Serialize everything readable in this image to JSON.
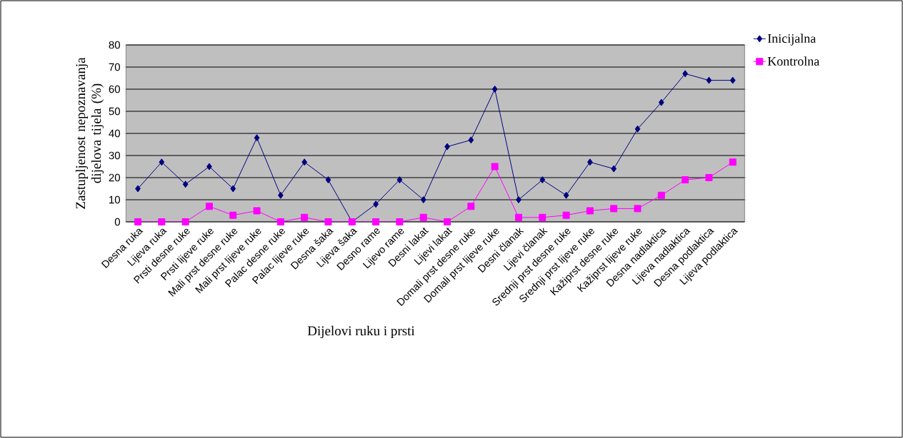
{
  "chart_data": {
    "type": "line",
    "xlabel": "Dijelovi ruku i prsti",
    "ylabel": "Zastupljenost nepoznavanja dijelova tijela (%)",
    "categories": [
      "Desna ruka",
      "Lijeva ruka",
      "Prsti desne ruke",
      "Prsti lijeve ruke",
      "Mali prst desne ruke",
      "Mali prst lijeve ruke",
      "Palac desne ruke",
      "Palac lijeve ruke",
      "Desna šaka",
      "Lijeva šaka",
      "Desno rame",
      "Lijevo rame",
      "Desni lakat",
      "Lijevi lakat",
      "Domali prst desne ruke",
      "Domali prst lijeve ruke",
      "Desni članak",
      "Lijevi članak",
      "Srednji prst desne ruke",
      "Srednji prst lijeve ruke",
      "Kažiprst desne ruke",
      "Kažiprst lijeve ruke",
      "Desna nadlaktica",
      "Lijeva nadlaktica",
      "Desna podlaktica",
      "Lijeva podlaktica"
    ],
    "series": [
      {
        "name": "Inicijalna",
        "color": "#000080",
        "marker": "diamond",
        "values": [
          15,
          27,
          17,
          25,
          15,
          38,
          12,
          27,
          19,
          0,
          8,
          19,
          10,
          34,
          37,
          60,
          10,
          19,
          12,
          27,
          24,
          42,
          54,
          67,
          64,
          64
        ]
      },
      {
        "name": "Kontrolna",
        "color": "#ff00ff",
        "marker": "square",
        "values": [
          0,
          0,
          0,
          7,
          3,
          5,
          0,
          2,
          0,
          0,
          0,
          0,
          2,
          0,
          7,
          25,
          2,
          2,
          3,
          5,
          6,
          6,
          12,
          19,
          20,
          27
        ]
      }
    ],
    "ylim": [
      0,
      80
    ],
    "yticks": [
      0,
      10,
      20,
      30,
      40,
      50,
      60,
      70,
      80
    ],
    "grid": "y",
    "legend": "top right",
    "line_style": "solid"
  }
}
